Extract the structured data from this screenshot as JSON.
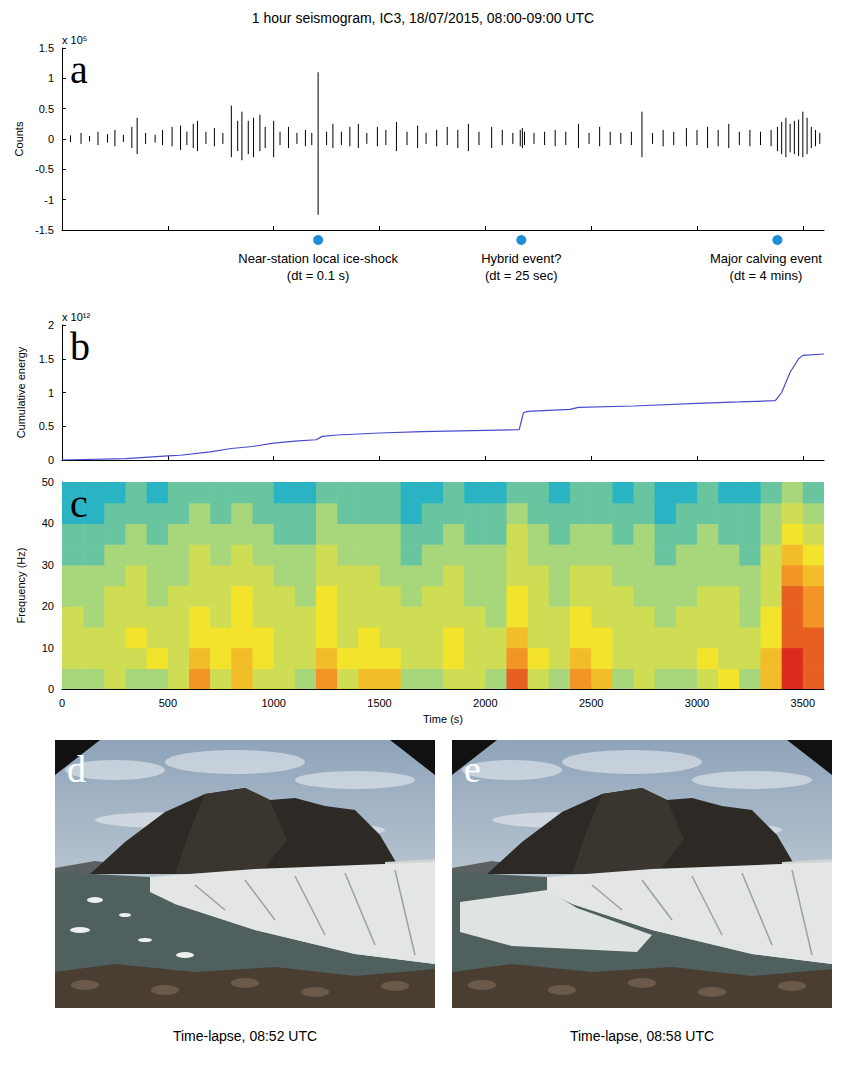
{
  "figure_title": "1 hour seismogram, IC3, 18/07/2015, 08:00-09:00 UTC",
  "chart_data": [
    {
      "type": "seismogram",
      "panel_label": "a",
      "y_label": "Counts",
      "y_multiplier": "x 10⁵",
      "xlim": [
        0,
        3600
      ],
      "xticks": [
        0,
        500,
        1000,
        1500,
        2000,
        2500,
        3000,
        3500
      ],
      "ylim": [
        -1.5,
        1.5
      ],
      "yticks": [
        -1.5,
        -1,
        -0.5,
        0,
        0.5,
        1,
        1.5
      ],
      "tick_labels": "y",
      "grid": false,
      "color": "#000000",
      "spikes": [
        [
          40,
          -0.05,
          0.06
        ],
        [
          90,
          -0.08,
          0.1
        ],
        [
          130,
          -0.04,
          0.05
        ],
        [
          170,
          -0.1,
          0.12
        ],
        [
          215,
          -0.06,
          0.08
        ],
        [
          250,
          -0.12,
          0.15
        ],
        [
          290,
          -0.05,
          0.07
        ],
        [
          330,
          -0.15,
          0.2
        ],
        [
          355,
          -0.25,
          0.35
        ],
        [
          395,
          -0.08,
          0.1
        ],
        [
          440,
          -0.06,
          0.07
        ],
        [
          475,
          -0.1,
          0.15
        ],
        [
          520,
          -0.12,
          0.2
        ],
        [
          560,
          -0.18,
          0.22
        ],
        [
          590,
          -0.1,
          0.12
        ],
        [
          620,
          -0.15,
          0.25
        ],
        [
          640,
          -0.2,
          0.3
        ],
        [
          680,
          -0.08,
          0.12
        ],
        [
          720,
          -0.12,
          0.18
        ],
        [
          760,
          -0.08,
          0.1
        ],
        [
          800,
          -0.3,
          0.55
        ],
        [
          830,
          -0.2,
          0.3
        ],
        [
          850,
          -0.35,
          0.45
        ],
        [
          880,
          -0.25,
          0.3
        ],
        [
          905,
          -0.3,
          0.35
        ],
        [
          935,
          -0.2,
          0.4
        ],
        [
          960,
          -0.15,
          0.2
        ],
        [
          1000,
          -0.3,
          0.3
        ],
        [
          1030,
          -0.1,
          0.12
        ],
        [
          1070,
          -0.15,
          0.2
        ],
        [
          1110,
          -0.08,
          0.1
        ],
        [
          1150,
          -0.12,
          0.15
        ],
        [
          1180,
          -0.1,
          0.1
        ],
        [
          1210,
          -1.25,
          1.1
        ],
        [
          1250,
          -0.1,
          0.12
        ],
        [
          1280,
          -0.15,
          0.25
        ],
        [
          1320,
          -0.1,
          0.12
        ],
        [
          1360,
          -0.12,
          0.2
        ],
        [
          1400,
          -0.15,
          0.25
        ],
        [
          1440,
          -0.08,
          0.1
        ],
        [
          1490,
          -0.12,
          0.2
        ],
        [
          1530,
          -0.1,
          0.15
        ],
        [
          1580,
          -0.2,
          0.28
        ],
        [
          1630,
          -0.1,
          0.12
        ],
        [
          1680,
          -0.15,
          0.22
        ],
        [
          1720,
          -0.08,
          0.1
        ],
        [
          1770,
          -0.12,
          0.15
        ],
        [
          1820,
          -0.1,
          0.2
        ],
        [
          1870,
          -0.15,
          0.15
        ],
        [
          1920,
          -0.2,
          0.25
        ],
        [
          1970,
          -0.1,
          0.12
        ],
        [
          2030,
          -0.15,
          0.2
        ],
        [
          2080,
          -0.1,
          0.15
        ],
        [
          2130,
          -0.08,
          0.1
        ],
        [
          2165,
          -0.12,
          0.15
        ],
        [
          2175,
          -0.15,
          0.18
        ],
        [
          2185,
          -0.1,
          0.12
        ],
        [
          2230,
          -0.08,
          0.1
        ],
        [
          2280,
          -0.1,
          0.12
        ],
        [
          2330,
          -0.12,
          0.15
        ],
        [
          2380,
          -0.1,
          0.12
        ],
        [
          2440,
          -0.15,
          0.25
        ],
        [
          2490,
          -0.08,
          0.1
        ],
        [
          2540,
          -0.12,
          0.2
        ],
        [
          2590,
          -0.1,
          0.12
        ],
        [
          2640,
          -0.08,
          0.1
        ],
        [
          2690,
          -0.1,
          0.12
        ],
        [
          2740,
          -0.3,
          0.45
        ],
        [
          2790,
          -0.08,
          0.1
        ],
        [
          2840,
          -0.12,
          0.15
        ],
        [
          2890,
          -0.1,
          0.12
        ],
        [
          2950,
          -0.12,
          0.18
        ],
        [
          3000,
          -0.1,
          0.15
        ],
        [
          3050,
          -0.15,
          0.2
        ],
        [
          3100,
          -0.12,
          0.15
        ],
        [
          3150,
          -0.15,
          0.25
        ],
        [
          3200,
          -0.1,
          0.12
        ],
        [
          3250,
          -0.12,
          0.15
        ],
        [
          3300,
          -0.1,
          0.12
        ],
        [
          3350,
          -0.12,
          0.15
        ],
        [
          3380,
          -0.2,
          0.2
        ],
        [
          3400,
          -0.25,
          0.28
        ],
        [
          3420,
          -0.3,
          0.35
        ],
        [
          3440,
          -0.22,
          0.25
        ],
        [
          3460,
          -0.25,
          0.3
        ],
        [
          3480,
          -0.28,
          0.32
        ],
        [
          3500,
          -0.3,
          0.45
        ],
        [
          3520,
          -0.25,
          0.35
        ],
        [
          3540,
          -0.15,
          0.2
        ],
        [
          3560,
          -0.12,
          0.15
        ],
        [
          3580,
          -0.08,
          0.1
        ]
      ],
      "annotations": [
        {
          "x": 1210,
          "label": "Near-station local ice-shock",
          "detail": "(dt = 0.1 s)",
          "color": "#1a8fd8"
        },
        {
          "x": 2170,
          "label": "Hybrid event?",
          "detail": "(dt = 25 sec)",
          "color": "#1a8fd8"
        },
        {
          "x": 3380,
          "label": "Major calving event",
          "detail": "(dt = 4 mins)",
          "color": "#1a8fd8"
        }
      ]
    },
    {
      "type": "line",
      "panel_label": "b",
      "y_label": "Cumulative energy",
      "y_multiplier": "x 10¹²",
      "xlim": [
        0,
        3600
      ],
      "xticks": [
        0,
        500,
        1000,
        1500,
        2000,
        2500,
        3000,
        3500
      ],
      "ylim": [
        0,
        2
      ],
      "yticks": [
        0,
        0.5,
        1,
        1.5,
        2
      ],
      "tick_labels": "y",
      "grid": false,
      "color": "#4a4ad0",
      "x": [
        0,
        300,
        500,
        560,
        700,
        800,
        900,
        1000,
        1100,
        1200,
        1230,
        1300,
        1500,
        1700,
        2000,
        2160,
        2180,
        2200,
        2400,
        2440,
        2700,
        3000,
        3200,
        3370,
        3400,
        3440,
        3480,
        3500,
        3600
      ],
      "values": [
        0,
        0.02,
        0.06,
        0.07,
        0.12,
        0.17,
        0.2,
        0.25,
        0.28,
        0.3,
        0.35,
        0.37,
        0.4,
        0.42,
        0.44,
        0.45,
        0.7,
        0.72,
        0.75,
        0.78,
        0.8,
        0.84,
        0.86,
        0.88,
        1.0,
        1.3,
        1.5,
        1.55,
        1.57
      ]
    },
    {
      "type": "heatmap",
      "panel_label": "c",
      "x_label": "Time (s)",
      "y_label": "Frequency (Hz)",
      "xlim": [
        0,
        3600
      ],
      "xticks": [
        0,
        500,
        1000,
        1500,
        2000,
        2500,
        3000,
        3500
      ],
      "ylim": [
        0,
        50
      ],
      "yticks": [
        0,
        10,
        20,
        30,
        40,
        50
      ],
      "grid": false,
      "t": [
        50,
        150,
        250,
        350,
        450,
        550,
        650,
        750,
        850,
        950,
        1050,
        1150,
        1250,
        1350,
        1450,
        1550,
        1650,
        1750,
        1850,
        1950,
        2050,
        2150,
        2250,
        2350,
        2450,
        2550,
        2650,
        2750,
        2850,
        2950,
        3050,
        3150,
        3250,
        3350,
        3450,
        3550
      ],
      "f": [
        2.5,
        7.5,
        12.5,
        17.5,
        22.5,
        27.5,
        32.5,
        37.5,
        42.5,
        47.5
      ],
      "z": [
        [
          4,
          4,
          5,
          4,
          4,
          5,
          8,
          5,
          7,
          5,
          5,
          4,
          8,
          5,
          7,
          7,
          4,
          4,
          5,
          5,
          4,
          9,
          5,
          4,
          8,
          7,
          4,
          5,
          4,
          4,
          5,
          6,
          4,
          7,
          10,
          9
        ],
        [
          5,
          5,
          5,
          5,
          6,
          5,
          7,
          6,
          7,
          6,
          5,
          5,
          7,
          6,
          6,
          6,
          5,
          5,
          6,
          5,
          5,
          8,
          6,
          5,
          7,
          6,
          5,
          5,
          5,
          5,
          6,
          5,
          5,
          7,
          10,
          9
        ],
        [
          5,
          5,
          5,
          6,
          5,
          5,
          6,
          6,
          6,
          6,
          5,
          5,
          6,
          5,
          6,
          5,
          5,
          5,
          6,
          5,
          5,
          7,
          5,
          5,
          6,
          6,
          5,
          5,
          5,
          5,
          5,
          5,
          5,
          6,
          9,
          9
        ],
        [
          5,
          4,
          5,
          5,
          5,
          5,
          6,
          5,
          6,
          5,
          5,
          5,
          6,
          5,
          5,
          5,
          5,
          5,
          5,
          5,
          4,
          6,
          5,
          5,
          6,
          5,
          5,
          5,
          4,
          5,
          5,
          5,
          4,
          6,
          9,
          8
        ],
        [
          4,
          4,
          5,
          5,
          4,
          5,
          5,
          5,
          6,
          5,
          5,
          4,
          6,
          5,
          5,
          5,
          4,
          5,
          5,
          4,
          4,
          6,
          5,
          4,
          5,
          5,
          5,
          4,
          4,
          4,
          5,
          5,
          4,
          5,
          9,
          8
        ],
        [
          4,
          4,
          4,
          5,
          4,
          4,
          5,
          5,
          5,
          5,
          4,
          4,
          5,
          5,
          5,
          4,
          4,
          4,
          5,
          4,
          4,
          5,
          5,
          4,
          5,
          5,
          4,
          4,
          4,
          4,
          4,
          4,
          4,
          5,
          8,
          7
        ],
        [
          3,
          3,
          4,
          4,
          4,
          4,
          5,
          4,
          5,
          4,
          4,
          4,
          5,
          4,
          4,
          4,
          3,
          4,
          4,
          4,
          4,
          5,
          4,
          4,
          4,
          4,
          4,
          4,
          3,
          4,
          4,
          4,
          3,
          5,
          7,
          6
        ],
        [
          3,
          3,
          3,
          4,
          3,
          4,
          4,
          4,
          4,
          4,
          3,
          3,
          4,
          4,
          4,
          4,
          3,
          3,
          4,
          3,
          3,
          5,
          4,
          3,
          4,
          4,
          3,
          4,
          3,
          3,
          4,
          3,
          3,
          4,
          6,
          5
        ],
        [
          2,
          2,
          3,
          3,
          3,
          3,
          4,
          3,
          4,
          3,
          3,
          3,
          4,
          3,
          3,
          3,
          2,
          3,
          3,
          3,
          3,
          4,
          3,
          3,
          3,
          3,
          3,
          3,
          2,
          3,
          3,
          3,
          3,
          4,
          5,
          4
        ],
        [
          2,
          2,
          2,
          3,
          2,
          3,
          3,
          3,
          3,
          3,
          2,
          2,
          3,
          3,
          3,
          3,
          2,
          2,
          3,
          2,
          2,
          3,
          3,
          2,
          3,
          3,
          2,
          3,
          2,
          2,
          3,
          2,
          2,
          3,
          4,
          3
        ]
      ],
      "z_range": [
        2,
        10
      ],
      "colors": [
        "#2ab4c3",
        "#a8d67a",
        "#f3e42b",
        "#f29526",
        "#dc2a1e"
      ]
    }
  ],
  "photos": [
    {
      "panel_label": "d",
      "caption": "Time-lapse, 08:52 UTC"
    },
    {
      "panel_label": "e",
      "caption": "Time-lapse, 08:58 UTC"
    }
  ]
}
